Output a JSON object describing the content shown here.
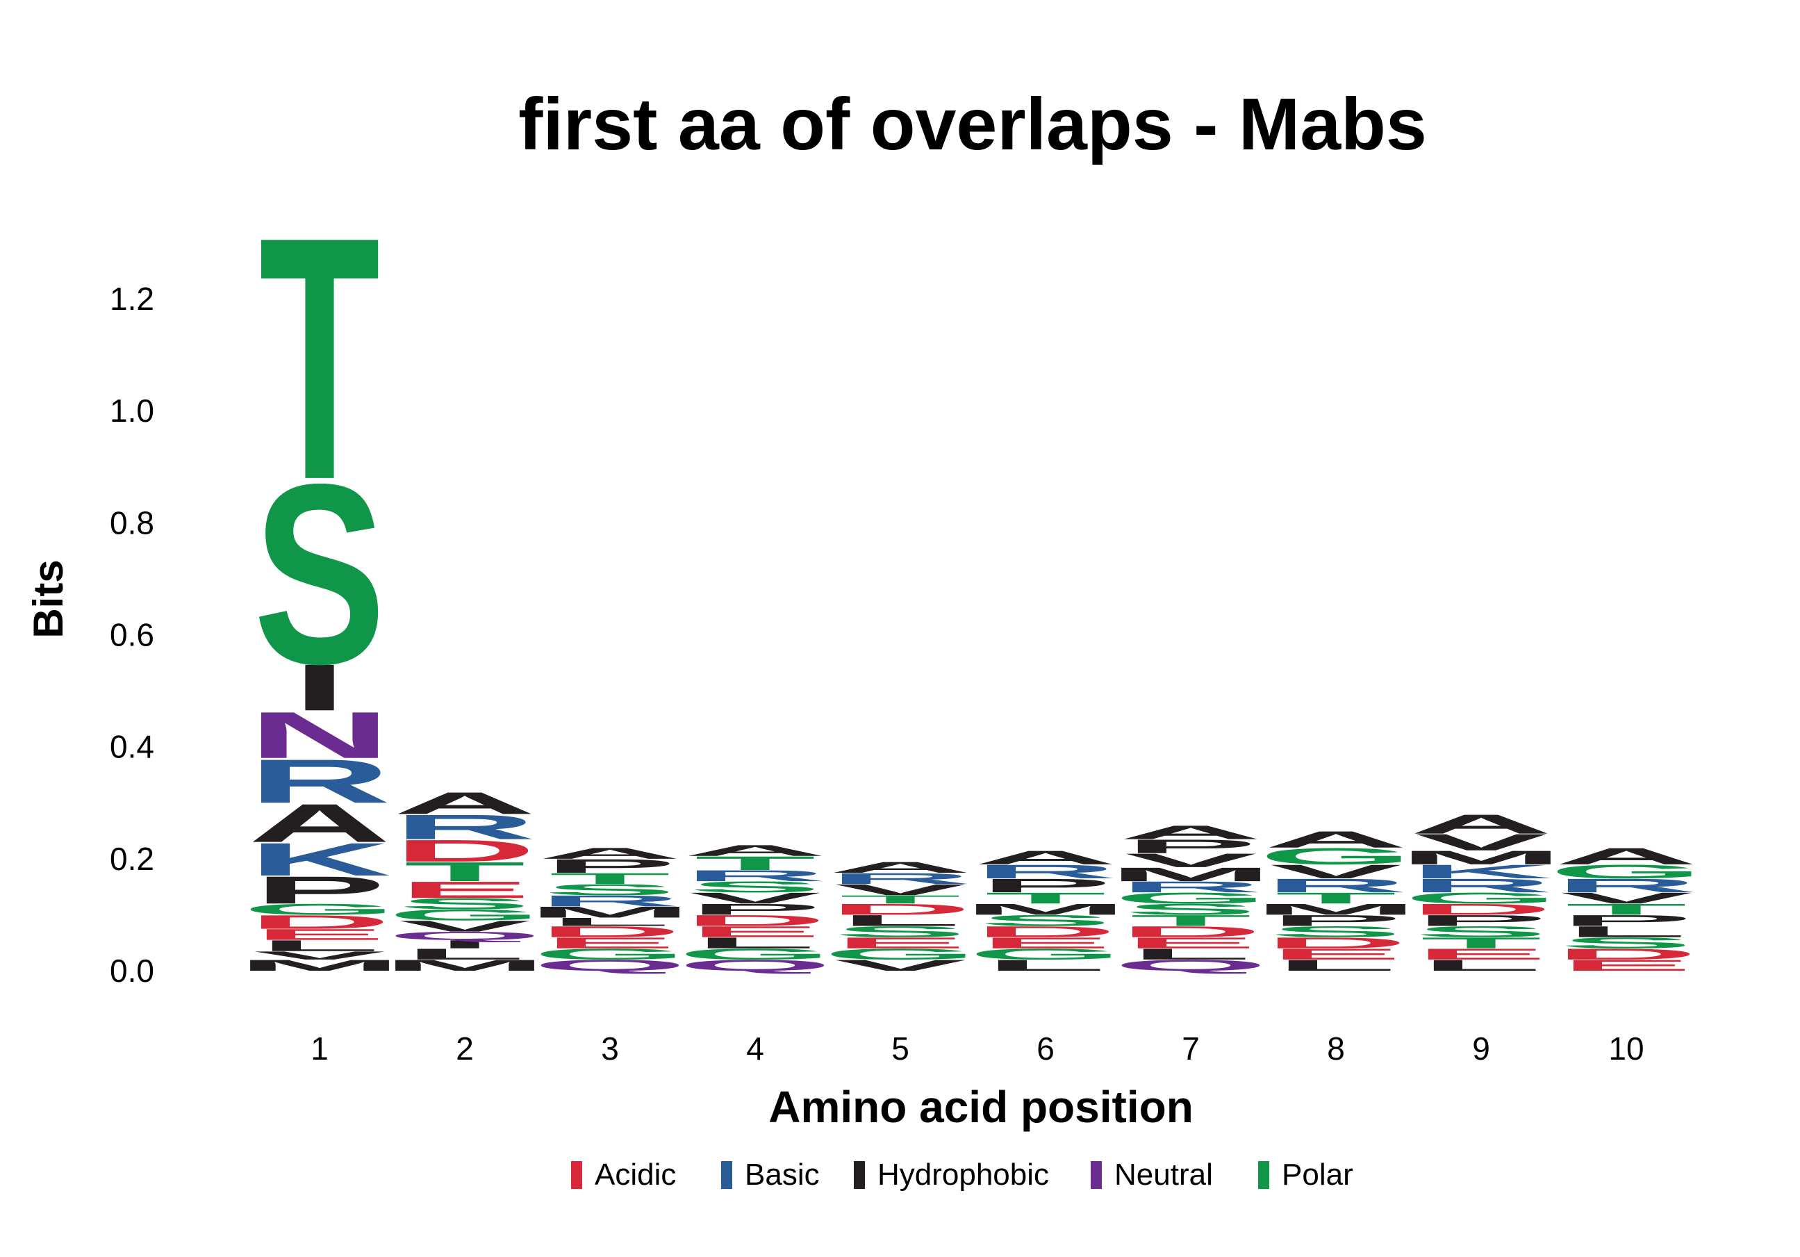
{
  "chart_data": {
    "type": "sequence-logo",
    "title": "first aa of overlaps - Mabs",
    "xlabel": "Amino acid position",
    "ylabel": "Bits",
    "ylim": [
      0,
      1.3
    ],
    "yticks": [
      "0.0",
      "0.2",
      "0.4",
      "0.6",
      "0.8",
      "1.0",
      "1.2"
    ],
    "ytick_values": [
      0.0,
      0.2,
      0.4,
      0.6,
      0.8,
      1.0,
      1.2
    ],
    "xticks": [
      "1",
      "2",
      "3",
      "4",
      "5",
      "6",
      "7",
      "8",
      "9",
      "10"
    ],
    "legend_position": "bottom",
    "groups": [
      {
        "name": "Acidic",
        "color": "#d62839"
      },
      {
        "name": "Basic",
        "color": "#2a5c99"
      },
      {
        "name": "Hydrophobic",
        "color": "#231f20"
      },
      {
        "name": "Neutral",
        "color": "#6a2c91"
      },
      {
        "name": "Polar",
        "color": "#109648"
      }
    ],
    "residue_groups": {
      "D": "Acidic",
      "E": "Acidic",
      "K": "Basic",
      "R": "Basic",
      "H": "Basic",
      "A": "Hydrophobic",
      "V": "Hydrophobic",
      "L": "Hydrophobic",
      "I": "Hydrophobic",
      "P": "Hydrophobic",
      "F": "Hydrophobic",
      "W": "Hydrophobic",
      "M": "Hydrophobic",
      "N": "Neutral",
      "Q": "Neutral",
      "S": "Polar",
      "T": "Polar",
      "G": "Polar",
      "Y": "Polar",
      "C": "Polar"
    },
    "positions": [
      {
        "position": 1,
        "stack": [
          {
            "aa": "M",
            "bits": 0.02
          },
          {
            "aa": "V",
            "bits": 0.015
          },
          {
            "aa": "L",
            "bits": 0.02
          },
          {
            "aa": "E",
            "bits": 0.02
          },
          {
            "aa": "D",
            "bits": 0.025
          },
          {
            "aa": "G",
            "bits": 0.02
          },
          {
            "aa": "P",
            "bits": 0.05
          },
          {
            "aa": "K",
            "bits": 0.06
          },
          {
            "aa": "A",
            "bits": 0.07
          },
          {
            "aa": "R",
            "bits": 0.08
          },
          {
            "aa": "N",
            "bits": 0.085
          },
          {
            "aa": "I",
            "bits": 0.085
          },
          {
            "aa": "S",
            "bits": 0.33
          },
          {
            "aa": "T",
            "bits": 0.445
          }
        ]
      },
      {
        "position": 2,
        "stack": [
          {
            "aa": "M",
            "bits": 0.02
          },
          {
            "aa": "L",
            "bits": 0.02
          },
          {
            "aa": "I",
            "bits": 0.015
          },
          {
            "aa": "Q",
            "bits": 0.015
          },
          {
            "aa": "V",
            "bits": 0.02
          },
          {
            "aa": "G",
            "bits": 0.02
          },
          {
            "aa": "S",
            "bits": 0.02
          },
          {
            "aa": "E",
            "bits": 0.03
          },
          {
            "aa": "T",
            "bits": 0.035
          },
          {
            "aa": "D",
            "bits": 0.04
          },
          {
            "aa": "R",
            "bits": 0.045
          },
          {
            "aa": "A",
            "bits": 0.04
          }
        ]
      },
      {
        "position": 3,
        "stack": [
          {
            "aa": "Q",
            "bits": 0.02
          },
          {
            "aa": "G",
            "bits": 0.02
          },
          {
            "aa": "E",
            "bits": 0.02
          },
          {
            "aa": "D",
            "bits": 0.02
          },
          {
            "aa": "L",
            "bits": 0.015
          },
          {
            "aa": "M",
            "bits": 0.02
          },
          {
            "aa": "R",
            "bits": 0.02
          },
          {
            "aa": "S",
            "bits": 0.02
          },
          {
            "aa": "T",
            "bits": 0.02
          },
          {
            "aa": "P",
            "bits": 0.025
          },
          {
            "aa": "A",
            "bits": 0.02
          }
        ]
      },
      {
        "position": 4,
        "stack": [
          {
            "aa": "Q",
            "bits": 0.02
          },
          {
            "aa": "G",
            "bits": 0.02
          },
          {
            "aa": "L",
            "bits": 0.02
          },
          {
            "aa": "E",
            "bits": 0.02
          },
          {
            "aa": "D",
            "bits": 0.02
          },
          {
            "aa": "P",
            "bits": 0.02
          },
          {
            "aa": "V",
            "bits": 0.02
          },
          {
            "aa": "S",
            "bits": 0.02
          },
          {
            "aa": "R",
            "bits": 0.02
          },
          {
            "aa": "T",
            "bits": 0.025
          },
          {
            "aa": "A",
            "bits": 0.02
          }
        ]
      },
      {
        "position": 5,
        "stack": [
          {
            "aa": "V",
            "bits": 0.02
          },
          {
            "aa": "G",
            "bits": 0.02
          },
          {
            "aa": "E",
            "bits": 0.02
          },
          {
            "aa": "S",
            "bits": 0.02
          },
          {
            "aa": "L",
            "bits": 0.02
          },
          {
            "aa": "D",
            "bits": 0.02
          },
          {
            "aa": "T",
            "bits": 0.015
          },
          {
            "aa": "V",
            "bits": 0.02
          },
          {
            "aa": "R",
            "bits": 0.02
          },
          {
            "aa": "A",
            "bits": 0.02
          }
        ]
      },
      {
        "position": 6,
        "stack": [
          {
            "aa": "L",
            "bits": 0.02
          },
          {
            "aa": "G",
            "bits": 0.02
          },
          {
            "aa": "E",
            "bits": 0.02
          },
          {
            "aa": "D",
            "bits": 0.02
          },
          {
            "aa": "S",
            "bits": 0.02
          },
          {
            "aa": "M",
            "bits": 0.02
          },
          {
            "aa": "T",
            "bits": 0.02
          },
          {
            "aa": "P",
            "bits": 0.025
          },
          {
            "aa": "R",
            "bits": 0.025
          },
          {
            "aa": "A",
            "bits": 0.025
          }
        ]
      },
      {
        "position": 7,
        "stack": [
          {
            "aa": "Q",
            "bits": 0.02
          },
          {
            "aa": "L",
            "bits": 0.02
          },
          {
            "aa": "E",
            "bits": 0.02
          },
          {
            "aa": "D",
            "bits": 0.02
          },
          {
            "aa": "T",
            "bits": 0.02
          },
          {
            "aa": "S",
            "bits": 0.02
          },
          {
            "aa": "G",
            "bits": 0.02
          },
          {
            "aa": "R",
            "bits": 0.02
          },
          {
            "aa": "M",
            "bits": 0.025
          },
          {
            "aa": "V",
            "bits": 0.025
          },
          {
            "aa": "P",
            "bits": 0.025
          },
          {
            "aa": "A",
            "bits": 0.025
          }
        ]
      },
      {
        "position": 8,
        "stack": [
          {
            "aa": "L",
            "bits": 0.02
          },
          {
            "aa": "E",
            "bits": 0.02
          },
          {
            "aa": "D",
            "bits": 0.02
          },
          {
            "aa": "S",
            "bits": 0.02
          },
          {
            "aa": "P",
            "bits": 0.02
          },
          {
            "aa": "M",
            "bits": 0.02
          },
          {
            "aa": "T",
            "bits": 0.02
          },
          {
            "aa": "R",
            "bits": 0.025
          },
          {
            "aa": "V",
            "bits": 0.025
          },
          {
            "aa": "G",
            "bits": 0.03
          },
          {
            "aa": "A",
            "bits": 0.03
          }
        ]
      },
      {
        "position": 9,
        "stack": [
          {
            "aa": "L",
            "bits": 0.02
          },
          {
            "aa": "E",
            "bits": 0.02
          },
          {
            "aa": "T",
            "bits": 0.02
          },
          {
            "aa": "S",
            "bits": 0.02
          },
          {
            "aa": "P",
            "bits": 0.02
          },
          {
            "aa": "D",
            "bits": 0.02
          },
          {
            "aa": "G",
            "bits": 0.02
          },
          {
            "aa": "R",
            "bits": 0.025
          },
          {
            "aa": "K",
            "bits": 0.025
          },
          {
            "aa": "M",
            "bits": 0.025
          },
          {
            "aa": "V",
            "bits": 0.03
          },
          {
            "aa": "A",
            "bits": 0.035
          }
        ]
      },
      {
        "position": 10,
        "stack": [
          {
            "aa": "E",
            "bits": 0.02
          },
          {
            "aa": "D",
            "bits": 0.02
          },
          {
            "aa": "S",
            "bits": 0.02
          },
          {
            "aa": "L",
            "bits": 0.02
          },
          {
            "aa": "P",
            "bits": 0.02
          },
          {
            "aa": "T",
            "bits": 0.02
          },
          {
            "aa": "V",
            "bits": 0.02
          },
          {
            "aa": "R",
            "bits": 0.025
          },
          {
            "aa": "G",
            "bits": 0.025
          },
          {
            "aa": "A",
            "bits": 0.03
          }
        ]
      }
    ]
  }
}
